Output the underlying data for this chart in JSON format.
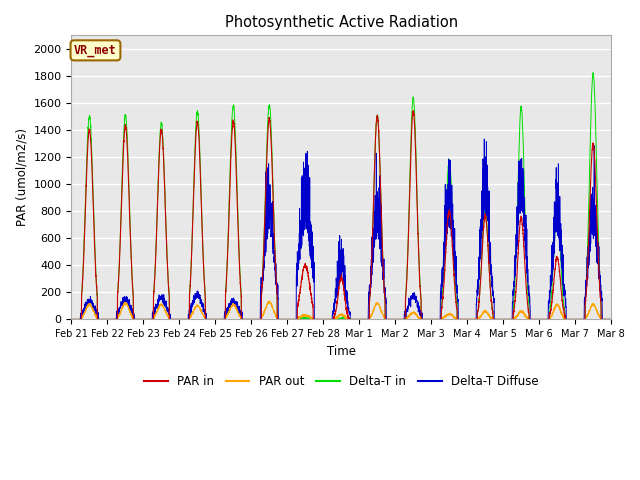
{
  "title": "Photosynthetic Active Radiation",
  "ylabel": "PAR (umol/m2/s)",
  "xlabel": "Time",
  "annotation": "VR_met",
  "annotation_color": "#8B0000",
  "annotation_bg": "#FFFFCC",
  "annotation_border": "#996600",
  "ylim": [
    0,
    2100
  ],
  "yticks": [
    0,
    200,
    400,
    600,
    800,
    1000,
    1200,
    1400,
    1600,
    1800,
    2000
  ],
  "bg_color": "#E8E8E8",
  "grid_color": "#FFFFFF",
  "colors": {
    "PAR_in": "#CC0000",
    "PAR_out": "#FFA500",
    "Delta_T_in": "#00DD00",
    "Delta_T_Diffuse": "#0000CC"
  },
  "legend_labels": [
    "PAR in",
    "PAR out",
    "Delta-T in",
    "Delta-T Diffuse"
  ],
  "num_days": 15,
  "day_labels": [
    "Feb 21",
    "Feb 22",
    "Feb 23",
    "Feb 24",
    "Feb 25",
    "Feb 26",
    "Feb 27",
    "Feb 28",
    "Mar 1",
    "Mar 2",
    "Mar 3",
    "Mar 4",
    "Mar 5",
    "Mar 6",
    "Mar 7",
    "Mar 8"
  ]
}
